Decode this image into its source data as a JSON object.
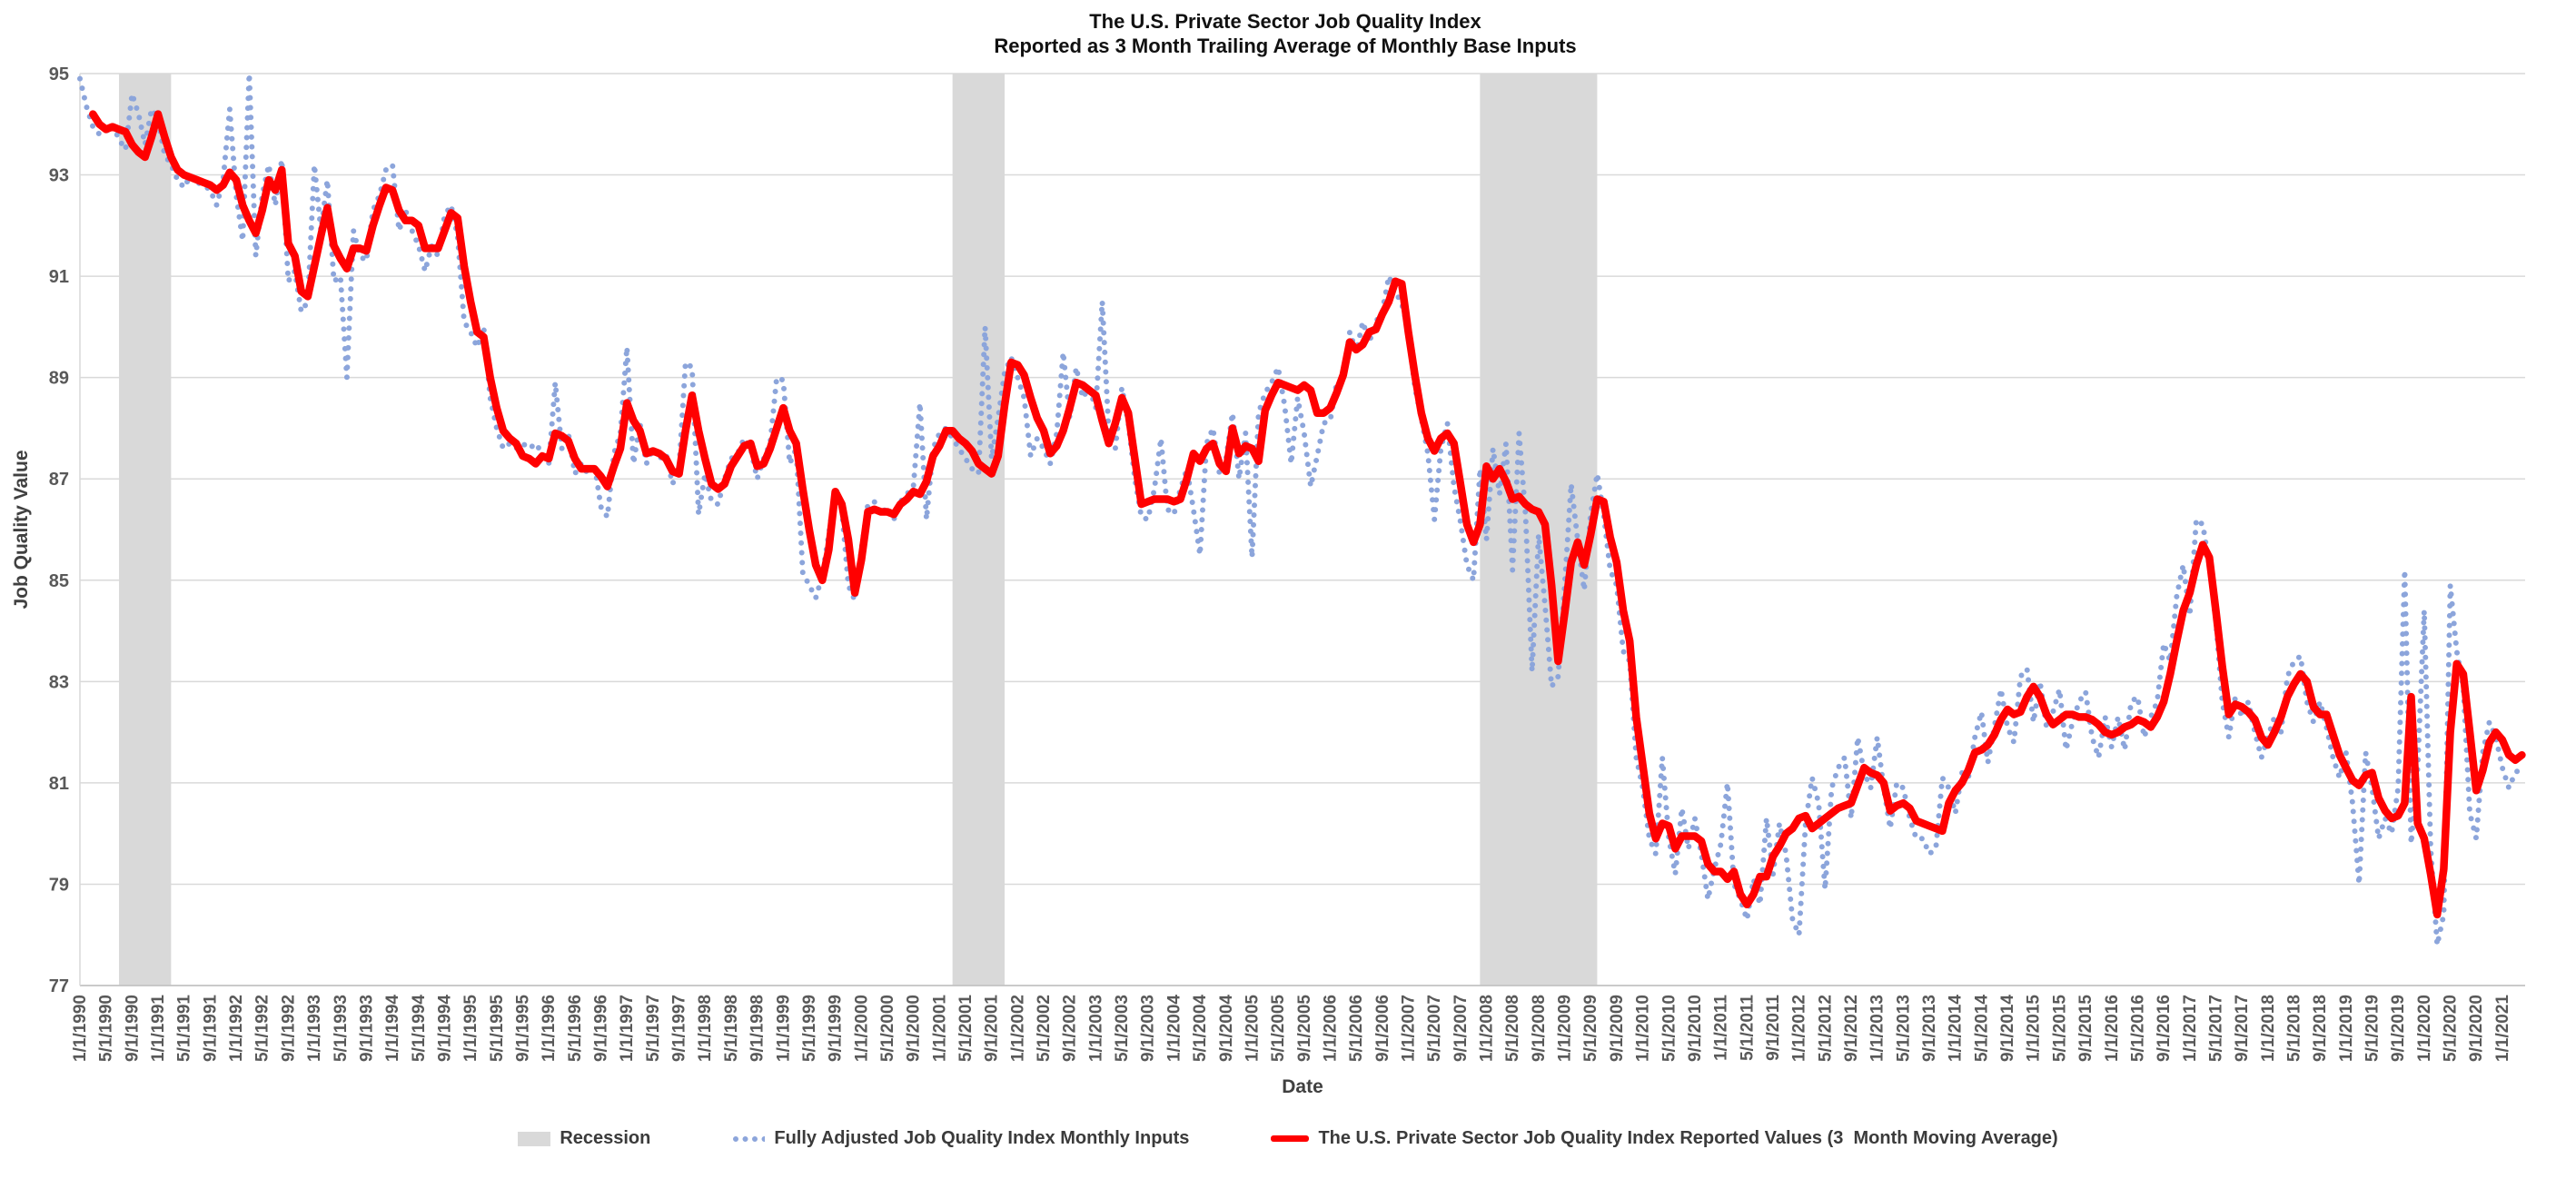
{
  "title": {
    "line1": "The U.S. Private Sector Job Quality Index",
    "line2": "Reported as 3 Month Trailing Average of Monthly Base Inputs"
  },
  "axes": {
    "y_title": "Job Quality Value",
    "x_title": "Date",
    "y_ticks": [
      95,
      93,
      91,
      89,
      87,
      85,
      83,
      81,
      79,
      77
    ],
    "x_tick_labels": [
      "1/1/1990",
      "5/1/1990",
      "9/1/1990",
      "1/1/1991",
      "5/1/1991",
      "9/1/1991",
      "1/1/1992",
      "5/1/1992",
      "9/1/1992",
      "1/1/1993",
      "5/1/1993",
      "9/1/1993",
      "1/1/1994",
      "5/1/1994",
      "9/1/1994",
      "1/1/1995",
      "5/1/1995",
      "9/1/1995",
      "1/1/1996",
      "5/1/1996",
      "9/1/1996",
      "1/1/1997",
      "5/1/1997",
      "9/1/1997",
      "1/1/1998",
      "5/1/1998",
      "9/1/1998",
      "1/1/1999",
      "5/1/1999",
      "9/1/1999",
      "1/1/2000",
      "5/1/2000",
      "9/1/2000",
      "1/1/2001",
      "5/1/2001",
      "9/1/2001",
      "1/1/2002",
      "5/1/2002",
      "9/1/2002",
      "1/1/2003",
      "5/1/2003",
      "9/1/2003",
      "1/1/2004",
      "5/1/2004",
      "9/1/2004",
      "1/1/2005",
      "5/1/2005",
      "9/1/2005",
      "1/1/2006",
      "5/1/2006",
      "9/1/2006",
      "1/1/2007",
      "5/1/2007",
      "9/1/2007",
      "1/1/2008",
      "5/1/2008",
      "9/1/2008",
      "1/1/2009",
      "5/1/2009",
      "9/1/2009",
      "1/1/2010",
      "5/1/2010",
      "9/1/2010",
      "1/1/2011",
      "5/1/2011",
      "9/1/2011",
      "1/1/2012",
      "5/1/2012",
      "9/1/2012",
      "1/1/2013",
      "5/1/2013",
      "9/1/2013",
      "1/1/2014",
      "5/1/2014",
      "9/1/2014",
      "1/1/2015",
      "5/1/2015",
      "9/1/2015",
      "1/1/2016",
      "5/1/2016",
      "9/1/2016",
      "1/1/2017",
      "5/1/2017",
      "9/1/2017",
      "1/1/2018",
      "5/1/2018",
      "9/1/2018",
      "1/1/2019",
      "5/1/2019",
      "9/1/2019",
      "1/1/2020",
      "5/1/2020",
      "9/1/2020",
      "1/1/2021"
    ]
  },
  "legend": {
    "recession_label": "Recession",
    "monthly_label": "Fully Adjusted Job Quality Index Monthly Inputs",
    "reported_label": "The U.S. Private Sector Job Quality Index Reported Values (3  Month Moving Average)"
  },
  "colors": {
    "reported_line": "#ff0000",
    "monthly_dots": "#8ca5db",
    "recession_band": "#d9d9d9",
    "gridline": "#d9d9d9",
    "axis_line": "#bfbfbf",
    "tick_text": "#595959",
    "axis_title_text": "#404040"
  },
  "chart_data": {
    "type": "line",
    "x_start": "1990-01",
    "x_step_months": 1,
    "x_tick_interval_months": 4,
    "ylim": [
      77,
      95
    ],
    "grid": "horizontal",
    "legend_position": "bottom",
    "recessions_month_index": [
      [
        6,
        14
      ],
      [
        134,
        142
      ],
      [
        215,
        233
      ]
    ],
    "series": [
      {
        "name": "Fully Adjusted Job Quality Index Monthly Inputs",
        "style": "dotted",
        "color": "#8ca5db",
        "start_index": 0,
        "values": [
          94.9,
          94.35,
          93.95,
          93.8,
          93.85,
          94.0,
          93.7,
          93.5,
          94.6,
          94.2,
          93.6,
          94.3,
          94.1,
          93.4,
          93.2,
          92.9,
          92.75,
          93.0,
          92.85,
          92.8,
          92.7,
          92.4,
          92.9,
          94.3,
          92.6,
          91.7,
          95.0,
          91.4,
          92.6,
          93.2,
          92.4,
          93.3,
          90.9,
          91.1,
          90.3,
          90.5,
          93.2,
          91.9,
          92.9,
          90.9,
          91.0,
          89.0,
          91.9,
          91.4,
          91.3,
          92.3,
          92.6,
          93.1,
          93.2,
          91.9,
          92.3,
          91.9,
          91.6,
          91.1,
          91.6,
          91.4,
          92.2,
          92.4,
          91.8,
          90.1,
          89.9,
          89.6,
          90.0,
          88.6,
          88.0,
          87.6,
          87.7,
          87.6,
          87.7,
          87.6,
          87.7,
          87.5,
          87.3,
          88.9,
          87.6,
          87.9,
          87.1,
          87.3,
          87.1,
          87.3,
          86.45,
          86.25,
          87.5,
          87.9,
          89.6,
          87.3,
          88.1,
          87.3,
          87.6,
          87.4,
          87.5,
          86.9,
          87.2,
          89.3,
          89.2,
          86.3,
          87.1,
          86.55,
          86.5,
          87.0,
          87.4,
          87.5,
          87.8,
          87.6,
          87.0,
          87.4,
          87.7,
          89.0,
          88.95,
          87.3,
          87.6,
          85.15,
          84.9,
          84.65,
          85.1,
          85.9,
          86.85,
          86.4,
          84.9,
          84.6,
          85.6,
          86.5,
          86.55,
          86.3,
          86.45,
          86.2,
          86.55,
          86.7,
          86.85,
          88.5,
          86.2,
          87.6,
          87.9,
          88.0,
          87.8,
          87.6,
          87.4,
          87.2,
          87.1,
          90.0,
          87.4,
          88.2,
          89.1,
          89.4,
          89.0,
          88.6,
          87.45,
          87.8,
          87.6,
          87.3,
          87.9,
          89.5,
          88.2,
          89.2,
          88.6,
          88.8,
          88.4,
          90.5,
          87.9,
          87.6,
          88.8,
          88.1,
          87.0,
          86.25,
          86.2,
          86.8,
          87.8,
          86.4,
          86.3,
          86.8,
          87.2,
          86.4,
          85.5,
          87.7,
          88.0,
          87.1,
          87.4,
          88.3,
          87.0,
          87.9,
          85.45,
          88.3,
          88.7,
          88.9,
          89.2,
          88.45,
          87.3,
          88.6,
          87.9,
          86.85,
          87.45,
          88.1,
          88.15,
          88.9,
          89.0,
          89.9,
          89.5,
          90.1,
          89.7,
          90.1,
          90.3,
          91.0,
          90.7,
          90.45,
          89.95,
          88.8,
          88.2,
          87.5,
          86.2,
          87.6,
          88.1,
          86.85,
          86.15,
          85.3,
          85.0,
          87.2,
          85.8,
          87.6,
          86.7,
          87.7,
          85.2,
          87.9,
          86.3,
          83.2,
          85.9,
          84.5,
          82.9,
          83.1,
          84.9,
          86.9,
          85.8,
          84.8,
          86.3,
          87.1,
          86.3,
          85.2,
          84.9,
          83.6,
          83.4,
          81.5,
          80.9,
          79.9,
          79.6,
          81.5,
          79.9,
          79.2,
          80.5,
          79.7,
          80.3,
          79.6,
          78.7,
          79.3,
          79.8,
          81.0,
          79.0,
          78.7,
          78.3,
          79.1,
          78.6,
          80.3,
          79.2,
          80.2,
          79.6,
          78.3,
          78.0,
          80.2,
          81.1,
          80.6,
          78.9,
          80.9,
          81.3,
          81.5,
          80.3,
          81.9,
          81.2,
          80.9,
          81.9,
          80.9,
          80.1,
          81.0,
          80.9,
          80.3,
          79.9,
          79.9,
          79.6,
          79.7,
          81.1,
          80.9,
          80.4,
          81.2,
          81.1,
          81.9,
          82.4,
          81.4,
          82.1,
          82.85,
          82.1,
          81.8,
          83.1,
          83.25,
          82.2,
          83.0,
          82.1,
          82.4,
          82.85,
          81.65,
          82.2,
          82.6,
          82.8,
          81.9,
          81.5,
          82.3,
          81.7,
          82.3,
          81.65,
          82.6,
          82.7,
          81.9,
          82.3,
          82.6,
          83.75,
          83.4,
          84.7,
          85.3,
          84.3,
          86.2,
          86.1,
          85.3,
          84.2,
          82.6,
          81.9,
          82.7,
          82.3,
          82.6,
          82.0,
          81.5,
          81.9,
          82.3,
          82.0,
          83.1,
          83.4,
          83.5,
          82.6,
          82.2,
          82.6,
          82.1,
          81.5,
          81.1,
          81.6,
          80.6,
          79.0,
          81.6,
          80.9,
          79.9,
          80.3,
          80.0,
          80.9,
          85.2,
          79.8,
          81.3,
          84.4,
          79.7,
          77.8,
          78.4,
          84.9,
          83.6,
          82.9,
          80.4,
          79.9,
          81.6,
          82.2,
          81.9,
          81.3,
          80.9,
          81.2,
          81.3
        ]
      },
      {
        "name": "The U.S. Private Sector Job Quality Index Reported Values (3  Month Moving Average)",
        "style": "solid",
        "color": "#ff0000",
        "start_index": 2,
        "values": [
          94.2,
          94.0,
          93.9,
          93.95,
          93.9,
          93.85,
          93.6,
          93.45,
          93.35,
          93.75,
          94.2,
          93.75,
          93.35,
          93.1,
          93.0,
          92.95,
          92.9,
          92.85,
          92.8,
          92.7,
          92.8,
          93.05,
          92.9,
          92.4,
          92.1,
          91.85,
          92.3,
          92.9,
          92.7,
          93.1,
          91.65,
          91.4,
          90.7,
          90.6,
          91.2,
          91.8,
          92.35,
          91.6,
          91.35,
          91.15,
          91.55,
          91.55,
          91.5,
          92.0,
          92.4,
          92.75,
          92.7,
          92.3,
          92.1,
          92.1,
          92.0,
          91.55,
          91.55,
          91.55,
          91.9,
          92.25,
          92.15,
          91.2,
          90.5,
          89.9,
          89.8,
          89.0,
          88.4,
          87.95,
          87.8,
          87.7,
          87.45,
          87.4,
          87.3,
          87.45,
          87.4,
          87.9,
          87.85,
          87.75,
          87.4,
          87.2,
          87.2,
          87.2,
          87.05,
          86.85,
          87.25,
          87.6,
          88.5,
          88.15,
          87.95,
          87.5,
          87.55,
          87.5,
          87.4,
          87.15,
          87.1,
          87.95,
          88.65,
          87.95,
          87.4,
          86.9,
          86.8,
          86.9,
          87.25,
          87.45,
          87.65,
          87.7,
          87.25,
          87.3,
          87.6,
          88.0,
          88.4,
          87.95,
          87.7,
          86.8,
          86.0,
          85.3,
          85.0,
          85.6,
          86.75,
          86.5,
          85.8,
          84.75,
          85.4,
          86.35,
          86.4,
          86.35,
          86.35,
          86.3,
          86.5,
          86.6,
          86.75,
          86.7,
          86.95,
          87.45,
          87.65,
          87.95,
          87.95,
          87.8,
          87.7,
          87.55,
          87.3,
          87.2,
          87.1,
          87.45,
          88.45,
          89.3,
          89.25,
          89.05,
          88.6,
          88.2,
          87.95,
          87.5,
          87.65,
          87.95,
          88.4,
          88.9,
          88.85,
          88.75,
          88.65,
          88.15,
          87.7,
          88.1,
          88.6,
          88.3,
          87.4,
          86.5,
          86.55,
          86.6,
          86.6,
          86.6,
          86.55,
          86.6,
          87.0,
          87.5,
          87.35,
          87.6,
          87.7,
          87.3,
          87.15,
          88.0,
          87.5,
          87.65,
          87.6,
          87.35,
          88.35,
          88.65,
          88.9,
          88.85,
          88.8,
          88.75,
          88.85,
          88.75,
          88.3,
          88.3,
          88.4,
          88.7,
          89.05,
          89.7,
          89.55,
          89.65,
          89.9,
          89.95,
          90.25,
          90.5,
          90.9,
          90.85,
          89.9,
          89.05,
          88.3,
          87.8,
          87.55,
          87.8,
          87.9,
          87.7,
          86.9,
          86.1,
          85.75,
          86.1,
          87.25,
          87.0,
          87.2,
          86.95,
          86.6,
          86.65,
          86.5,
          86.4,
          86.35,
          86.1,
          84.9,
          83.4,
          84.35,
          85.35,
          85.75,
          85.3,
          85.9,
          86.6,
          86.55,
          85.85,
          85.35,
          84.4,
          83.8,
          82.3,
          81.35,
          80.4,
          79.9,
          80.2,
          80.15,
          79.7,
          79.95,
          79.95,
          79.95,
          79.85,
          79.4,
          79.25,
          79.25,
          79.1,
          79.25,
          78.8,
          78.6,
          78.8,
          79.15,
          79.15,
          79.55,
          79.75,
          80.0,
          80.1,
          80.3,
          80.35,
          80.1,
          80.2,
          80.3,
          80.4,
          80.5,
          80.55,
          80.6,
          80.95,
          81.3,
          81.2,
          81.15,
          81.0,
          80.45,
          80.55,
          80.6,
          80.5,
          80.25,
          80.2,
          80.15,
          80.1,
          80.05,
          80.6,
          80.85,
          81.0,
          81.25,
          81.6,
          81.65,
          81.75,
          81.95,
          82.25,
          82.45,
          82.35,
          82.4,
          82.7,
          82.9,
          82.7,
          82.35,
          82.15,
          82.25,
          82.35,
          82.35,
          82.3,
          82.3,
          82.25,
          82.15,
          82.0,
          81.95,
          82.0,
          82.1,
          82.15,
          82.25,
          82.2,
          82.1,
          82.3,
          82.6,
          83.15,
          83.8,
          84.4,
          84.75,
          85.3,
          85.7,
          85.45,
          84.4,
          83.3,
          82.35,
          82.55,
          82.5,
          82.4,
          82.25,
          81.9,
          81.75,
          82.0,
          82.3,
          82.7,
          82.95,
          83.15,
          83.0,
          82.5,
          82.35,
          82.35,
          81.95,
          81.55,
          81.3,
          81.05,
          80.95,
          81.15,
          81.2,
          80.7,
          80.45,
          80.3,
          80.35,
          80.6,
          82.7,
          80.2,
          79.9,
          79.2,
          78.4,
          79.3,
          82.0,
          83.35,
          83.15,
          82.0,
          80.85,
          81.25,
          81.8,
          82.0,
          81.85,
          81.55,
          81.45,
          81.55
        ]
      }
    ]
  }
}
